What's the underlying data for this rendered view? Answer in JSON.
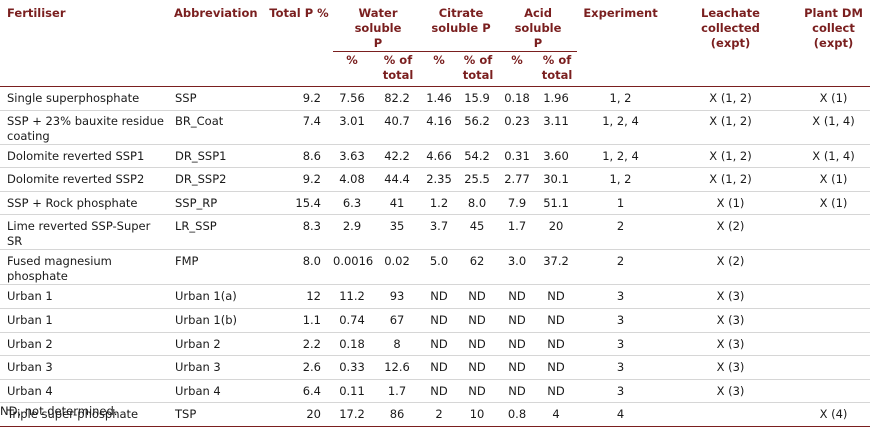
{
  "headers": {
    "fertiliser": "Fertiliser",
    "abbreviation": "Abbreviation",
    "total_p": "Total P %",
    "water": "Water soluble P",
    "citrate": "Citrate soluble P",
    "acid": "Acid soluble P",
    "experiment": "Experiment",
    "leachate": "Leachate collected (expt)",
    "plant_dm": "Plant DM collect (expt)",
    "pct": "%",
    "pct_total": "% of total"
  },
  "rows": [
    [
      "Single superphosphate",
      "SSP",
      "9.2",
      "7.56",
      "82.2",
      "1.46",
      "15.9",
      "0.18",
      "1.96",
      "1, 2",
      "X (1, 2)",
      "X (1)"
    ],
    [
      "SSP + 23% bauxite residue coating",
      "BR_Coat",
      "7.4",
      "3.01",
      "40.7",
      "4.16",
      "56.2",
      "0.23",
      "3.11",
      "1, 2, 4",
      "X (1, 2)",
      "X (1, 4)"
    ],
    [
      "Dolomite reverted SSP1",
      "DR_SSP1",
      "8.6",
      "3.63",
      "42.2",
      "4.66",
      "54.2",
      "0.31",
      "3.60",
      "1, 2, 4",
      "X (1, 2)",
      "X (1, 4)"
    ],
    [
      "Dolomite reverted SSP2",
      "DR_SSP2",
      "9.2",
      "4.08",
      "44.4",
      "2.35",
      "25.5",
      "2.77",
      "30.1",
      "1, 2",
      "X (1, 2)",
      "X (1)"
    ],
    [
      "SSP + Rock phosphate",
      "SSP_RP",
      "15.4",
      "6.3",
      "41",
      "1.2",
      "8.0",
      "7.9",
      "51.1",
      "1",
      "X (1)",
      "X (1)"
    ],
    [
      "Lime reverted SSP-Super SR",
      "LR_SSP",
      "8.3",
      "2.9",
      "35",
      "3.7",
      "45",
      "1.7",
      "20",
      "2",
      "X (2)",
      ""
    ],
    [
      "Fused magnesium phosphate",
      "FMP",
      "8.0",
      "0.0016",
      "0.02",
      "5.0",
      "62",
      "3.0",
      "37.2",
      "2",
      "X (2)",
      ""
    ],
    [
      "Urban 1",
      "Urban 1(a)",
      "12",
      "11.2",
      "93",
      "ND",
      "ND",
      "ND",
      "ND",
      "3",
      "X (3)",
      ""
    ],
    [
      "Urban 1",
      "Urban 1(b)",
      "1.1",
      "0.74",
      "67",
      "ND",
      "ND",
      "ND",
      "ND",
      "3",
      "X (3)",
      ""
    ],
    [
      "Urban 2",
      "Urban 2",
      "2.2",
      "0.18",
      "8",
      "ND",
      "ND",
      "ND",
      "ND",
      "3",
      "X (3)",
      ""
    ],
    [
      "Urban 3",
      "Urban 3",
      "2.6",
      "0.33",
      "12.6",
      "ND",
      "ND",
      "ND",
      "ND",
      "3",
      "X (3)",
      ""
    ],
    [
      "Urban 4",
      "Urban 4",
      "6.4",
      "0.11",
      "1.7",
      "ND",
      "ND",
      "ND",
      "ND",
      "3",
      "X (3)",
      ""
    ],
    [
      "Triple super-phosphate",
      "TSP",
      "20",
      "17.2",
      "86",
      "2",
      "10",
      "0.8",
      "4",
      "4",
      "",
      "X (4)"
    ]
  ],
  "footnote": "ND, not determined."
}
